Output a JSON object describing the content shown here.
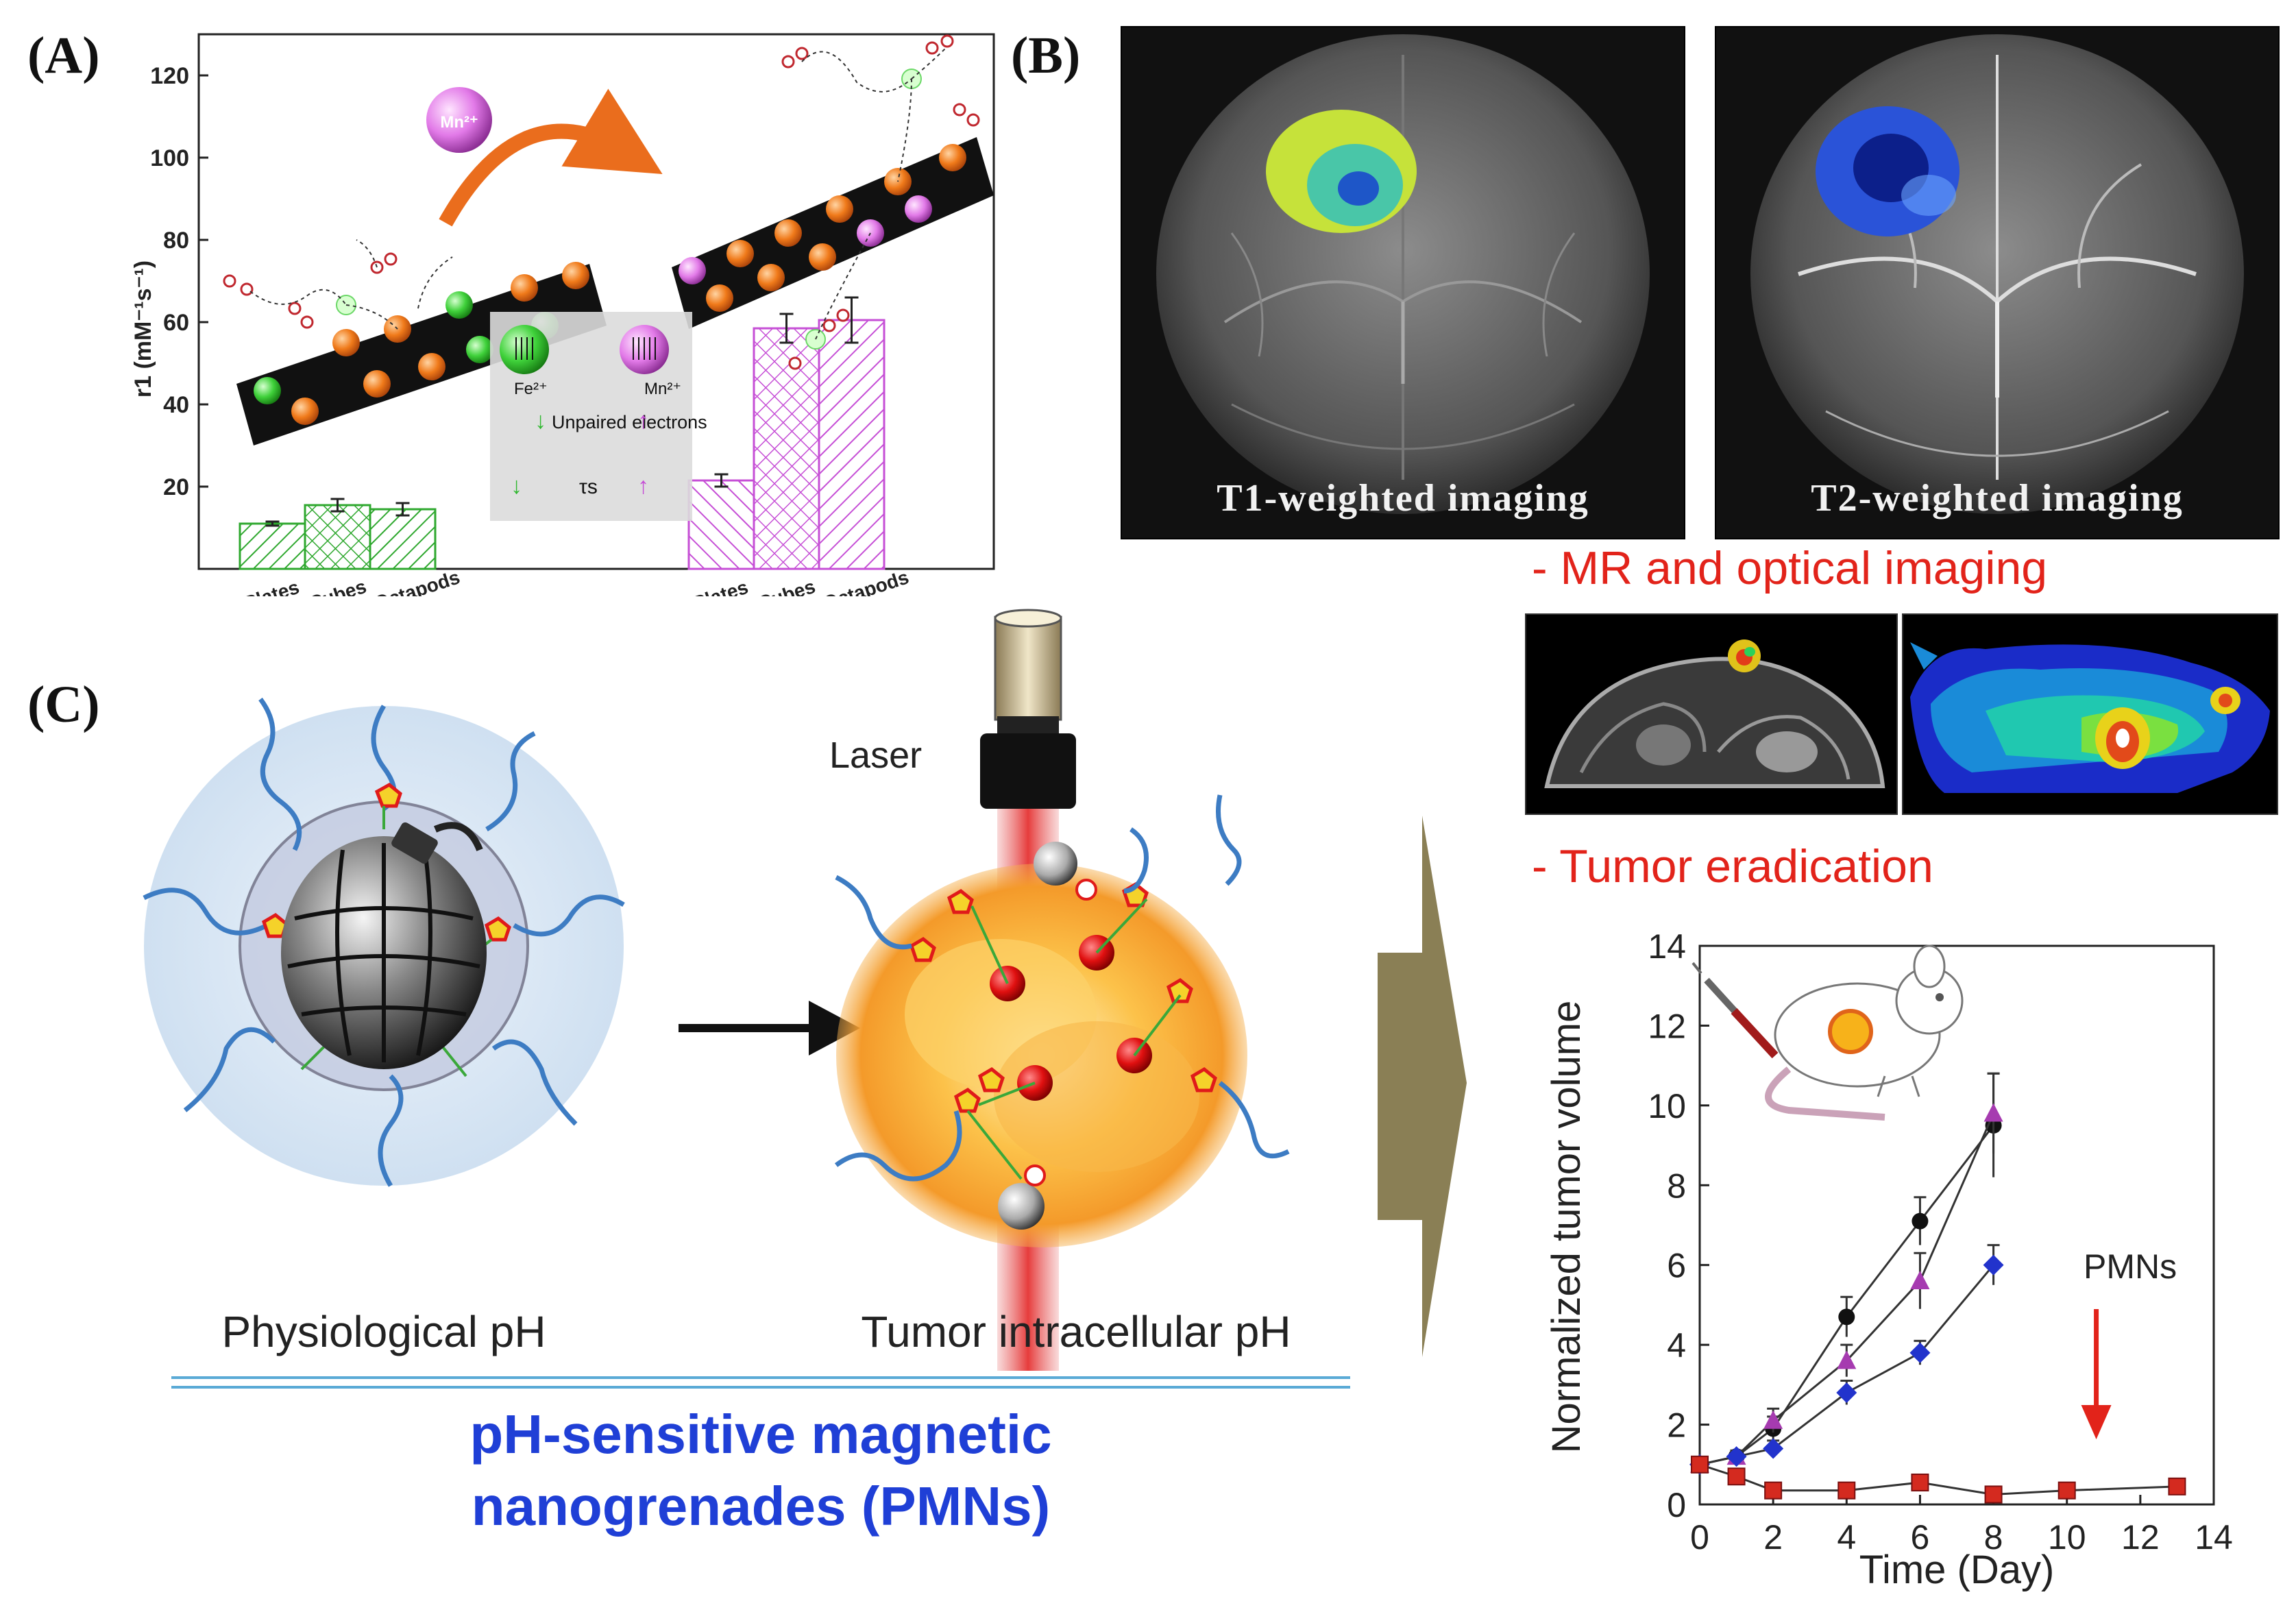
{
  "panel_a": {
    "label": "(A)",
    "ion_label": "Mn²⁺",
    "fe_label": "Fe²⁺",
    "mn_label": "Mn²⁺",
    "unpaired_label": "Unpaired electrons",
    "tau_label": "τs",
    "plate_particle_labels": [
      "Fe²⁺",
      "Fe²⁺",
      "Fe²⁺"
    ],
    "chart_data": {
      "type": "bar",
      "ylabel": "r1 (mM⁻¹s⁻¹)",
      "ylim": [
        0,
        130
      ],
      "yticks": [
        20,
        40,
        60,
        80,
        100,
        120
      ],
      "categories": [
        "Plates",
        "Cubes",
        "Octapods"
      ],
      "series": [
        {
          "values": [
            11,
            15.5,
            14.5
          ],
          "errors": [
            0.5,
            1.5,
            1.5
          ],
          "color": "#2fa82f"
        },
        {
          "values": [
            21.5,
            58.5,
            60.5
          ],
          "errors": [
            1.5,
            3.5,
            5.5
          ],
          "color": "#c64fd6"
        }
      ]
    }
  },
  "panel_b": {
    "label": "(B)",
    "t1_caption": "T1-weighted imaging",
    "t2_caption": "T2-weighted imaging",
    "mr_optical_heading": "- MR and optical imaging",
    "eradication_heading": "- Tumor eradication",
    "chart_data": {
      "type": "line",
      "xlabel": "Time (Day)",
      "ylabel": "Normalized tumor volume",
      "xlim": [
        0,
        14
      ],
      "ylim": [
        0,
        14
      ],
      "xticks": [
        0,
        2,
        4,
        6,
        8,
        10,
        12,
        14
      ],
      "yticks": [
        0,
        2,
        4,
        6,
        8,
        10,
        12,
        14
      ],
      "annotation": "PMNs",
      "annotation_x": 10.8,
      "series": [
        {
          "color": "#111111",
          "marker": "circle",
          "x": [
            0,
            1,
            2,
            4,
            6,
            8
          ],
          "y": [
            1.0,
            1.2,
            1.9,
            4.7,
            7.1,
            9.5
          ],
          "errors": [
            0.1,
            0.15,
            0.3,
            0.5,
            0.6,
            1.3
          ]
        },
        {
          "color": "#a63bb0",
          "marker": "triangle",
          "x": [
            0,
            1,
            2,
            4,
            6,
            8
          ],
          "y": [
            1.0,
            1.2,
            2.1,
            3.6,
            5.6,
            9.8
          ],
          "errors": [
            0.1,
            0.15,
            0.3,
            0.4,
            0.7,
            1.0
          ]
        },
        {
          "color": "#2233cc",
          "marker": "diamond",
          "x": [
            0,
            1,
            2,
            4,
            6,
            8
          ],
          "y": [
            1.0,
            1.2,
            1.4,
            2.8,
            3.8,
            6.0
          ],
          "errors": [
            0.1,
            0.1,
            0.2,
            0.3,
            0.3,
            0.5
          ]
        },
        {
          "color": "#d42a1f",
          "marker": "square",
          "x": [
            0,
            1,
            2,
            4,
            6,
            8,
            10,
            13
          ],
          "y": [
            1.0,
            0.7,
            0.35,
            0.35,
            0.55,
            0.25,
            0.35,
            0.45
          ],
          "errors": [
            0.1,
            0.1,
            0.05,
            0.05,
            0.1,
            0.05,
            0.05,
            0.05
          ]
        }
      ]
    }
  },
  "panel_c": {
    "label": "(C)",
    "laser_label": "Laser",
    "physiological_label": "Physiological pH",
    "tumor_label": "Tumor intracellular pH",
    "title_line1": "pH-sensitive magnetic",
    "title_line2": "nanogrenades (PMNs)"
  },
  "colors": {
    "green_bar": "#2fa82f",
    "purple_bar": "#c64fd6",
    "heading_red": "#e2231a",
    "title_blue": "#1f3fd6",
    "arrow_olive": "#8a7f55"
  }
}
